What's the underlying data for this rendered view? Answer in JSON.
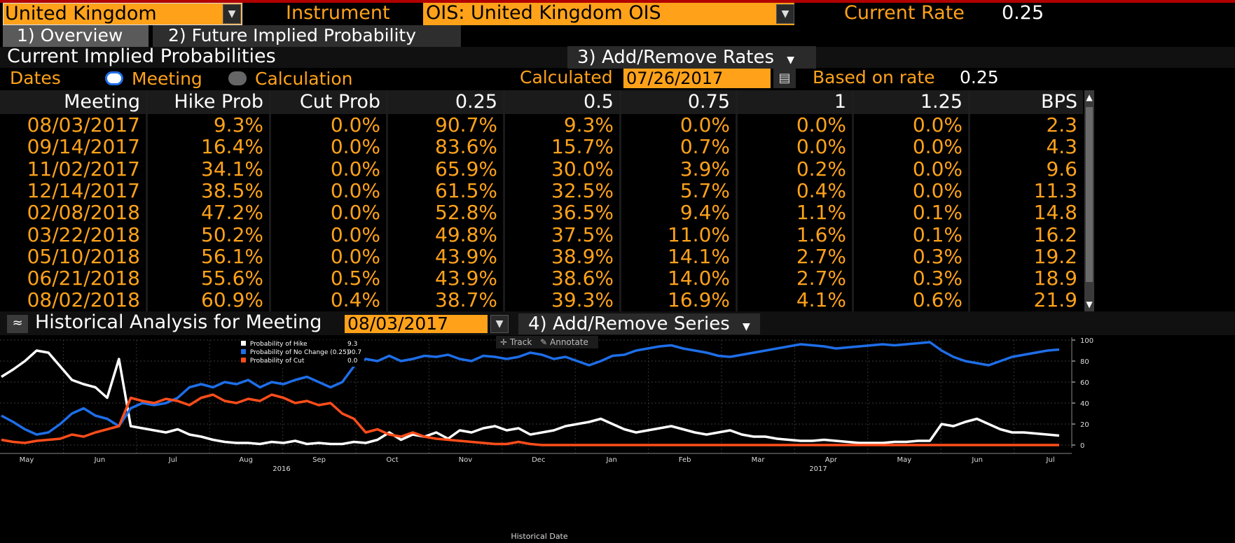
{
  "header": {
    "country": "United Kingdom",
    "instrument_label": "Instrument",
    "instrument_value": "OIS: United Kingdom OIS",
    "current_rate_label": "Current Rate",
    "current_rate_value": "0.25"
  },
  "tabs": [
    {
      "label": "1) Overview"
    },
    {
      "label": "2) Future Implied Probability"
    }
  ],
  "section": {
    "title": "Current Implied Probabilities",
    "add_remove_rates": "3) Add/Remove Rates",
    "dates_label": "Dates",
    "radio_meeting": "Meeting",
    "radio_calculation": "Calculation",
    "calculated_label": "Calculated",
    "calculated_date": "07/26/2017",
    "based_on_label": "Based on rate",
    "based_on_value": "0.25"
  },
  "table": {
    "columns": [
      "Meeting",
      "Hike Prob",
      "Cut Prob",
      "0.25",
      "0.5",
      "0.75",
      "1",
      "1.25",
      "BPS"
    ],
    "rows": [
      [
        "08/03/2017",
        "9.3%",
        "0.0%",
        "90.7%",
        "9.3%",
        "0.0%",
        "0.0%",
        "0.0%",
        "2.3"
      ],
      [
        "09/14/2017",
        "16.4%",
        "0.0%",
        "83.6%",
        "15.7%",
        "0.7%",
        "0.0%",
        "0.0%",
        "4.3"
      ],
      [
        "11/02/2017",
        "34.1%",
        "0.0%",
        "65.9%",
        "30.0%",
        "3.9%",
        "0.2%",
        "0.0%",
        "9.6"
      ],
      [
        "12/14/2017",
        "38.5%",
        "0.0%",
        "61.5%",
        "32.5%",
        "5.7%",
        "0.4%",
        "0.0%",
        "11.3"
      ],
      [
        "02/08/2018",
        "47.2%",
        "0.0%",
        "52.8%",
        "36.5%",
        "9.4%",
        "1.1%",
        "0.1%",
        "14.8"
      ],
      [
        "03/22/2018",
        "50.2%",
        "0.0%",
        "49.8%",
        "37.5%",
        "11.0%",
        "1.6%",
        "0.1%",
        "16.2"
      ],
      [
        "05/10/2018",
        "56.1%",
        "0.0%",
        "43.9%",
        "38.9%",
        "14.1%",
        "2.7%",
        "0.3%",
        "19.2"
      ],
      [
        "06/21/2018",
        "55.6%",
        "0.5%",
        "43.9%",
        "38.6%",
        "14.0%",
        "2.7%",
        "0.3%",
        "18.9"
      ],
      [
        "08/02/2018",
        "60.9%",
        "0.4%",
        "38.7%",
        "39.3%",
        "16.9%",
        "4.1%",
        "0.6%",
        "21.9"
      ]
    ]
  },
  "historical": {
    "title": "Historical Analysis for Meeting",
    "meeting_date": "08/03/2017",
    "add_remove_series": "4) Add/Remove Series",
    "track": "Track",
    "annotate": "Annotate"
  },
  "chart_data": {
    "type": "line",
    "xlabel": "Historical Date",
    "x_ticks": [
      "May",
      "Jun",
      "Jul",
      "Aug",
      "Sep",
      "Oct",
      "Nov",
      "Dec",
      "Jan",
      "Feb",
      "Mar",
      "Apr",
      "May",
      "Jun",
      "Jul"
    ],
    "year_labels": [
      "2016",
      "2017"
    ],
    "y_ticks": [
      0,
      20,
      40,
      60,
      80,
      100
    ],
    "ylim": [
      0,
      100
    ],
    "legend": [
      {
        "name": "Probability of Hike",
        "value": "9.3",
        "color": "#ffffff"
      },
      {
        "name": "Probability of No Change (0.25)",
        "value": "90.7",
        "color": "#1e6ee8"
      },
      {
        "name": "Probability of Cut",
        "value": "0.0",
        "color": "#ff4d1a"
      }
    ],
    "series": [
      {
        "name": "Probability of Hike",
        "color": "#ffffff",
        "values": [
          65,
          72,
          80,
          90,
          88,
          75,
          62,
          58,
          55,
          45,
          82,
          18,
          16,
          14,
          12,
          15,
          10,
          8,
          5,
          3,
          2,
          2,
          1,
          3,
          2,
          4,
          1,
          2,
          1,
          1,
          3,
          2,
          5,
          12,
          5,
          10,
          8,
          12,
          6,
          14,
          12,
          16,
          18,
          14,
          16,
          10,
          12,
          14,
          18,
          20,
          22,
          25,
          20,
          15,
          12,
          14,
          16,
          18,
          15,
          12,
          10,
          12,
          14,
          10,
          8,
          8,
          6,
          5,
          4,
          4,
          5,
          4,
          3,
          2,
          2,
          2,
          3,
          3,
          4,
          4,
          20,
          18,
          22,
          25,
          20,
          15,
          12,
          12,
          11,
          10,
          9
        ]
      },
      {
        "name": "Probability of No Change (0.25)",
        "color": "#1e6ee8",
        "values": [
          28,
          22,
          15,
          10,
          12,
          20,
          30,
          35,
          28,
          25,
          18,
          35,
          40,
          38,
          40,
          45,
          55,
          58,
          55,
          60,
          58,
          62,
          55,
          60,
          58,
          62,
          65,
          60,
          55,
          60,
          75,
          82,
          80,
          85,
          80,
          82,
          85,
          84,
          86,
          82,
          80,
          85,
          84,
          82,
          84,
          88,
          86,
          82,
          84,
          80,
          76,
          80,
          85,
          86,
          90,
          92,
          94,
          95,
          92,
          90,
          88,
          85,
          84,
          86,
          88,
          90,
          92,
          94,
          96,
          95,
          94,
          92,
          93,
          94,
          95,
          96,
          95,
          96,
          97,
          98,
          90,
          84,
          80,
          78,
          76,
          80,
          84,
          86,
          88,
          90,
          91
        ]
      },
      {
        "name": "Probability of Cut",
        "color": "#ff4d1a",
        "values": [
          5,
          3,
          2,
          4,
          5,
          6,
          10,
          8,
          12,
          15,
          18,
          45,
          42,
          40,
          44,
          42,
          38,
          45,
          48,
          42,
          40,
          44,
          42,
          48,
          45,
          40,
          42,
          38,
          40,
          30,
          25,
          12,
          15,
          10,
          8,
          12,
          8,
          6,
          5,
          4,
          3,
          2,
          1,
          1,
          3,
          1,
          0,
          0,
          0,
          0,
          0,
          0,
          0,
          0,
          0,
          0,
          0,
          0,
          0,
          0,
          0,
          0,
          0,
          0,
          0,
          0,
          0,
          0,
          0,
          0,
          0,
          0,
          0,
          0,
          0,
          0,
          0,
          0,
          0,
          0,
          0,
          0,
          0,
          0,
          0,
          0,
          0,
          0,
          0,
          0,
          0
        ]
      }
    ]
  },
  "colors": {
    "accent": "#ffa21a",
    "background": "#000000",
    "header_bg": "#1b1b1b"
  }
}
